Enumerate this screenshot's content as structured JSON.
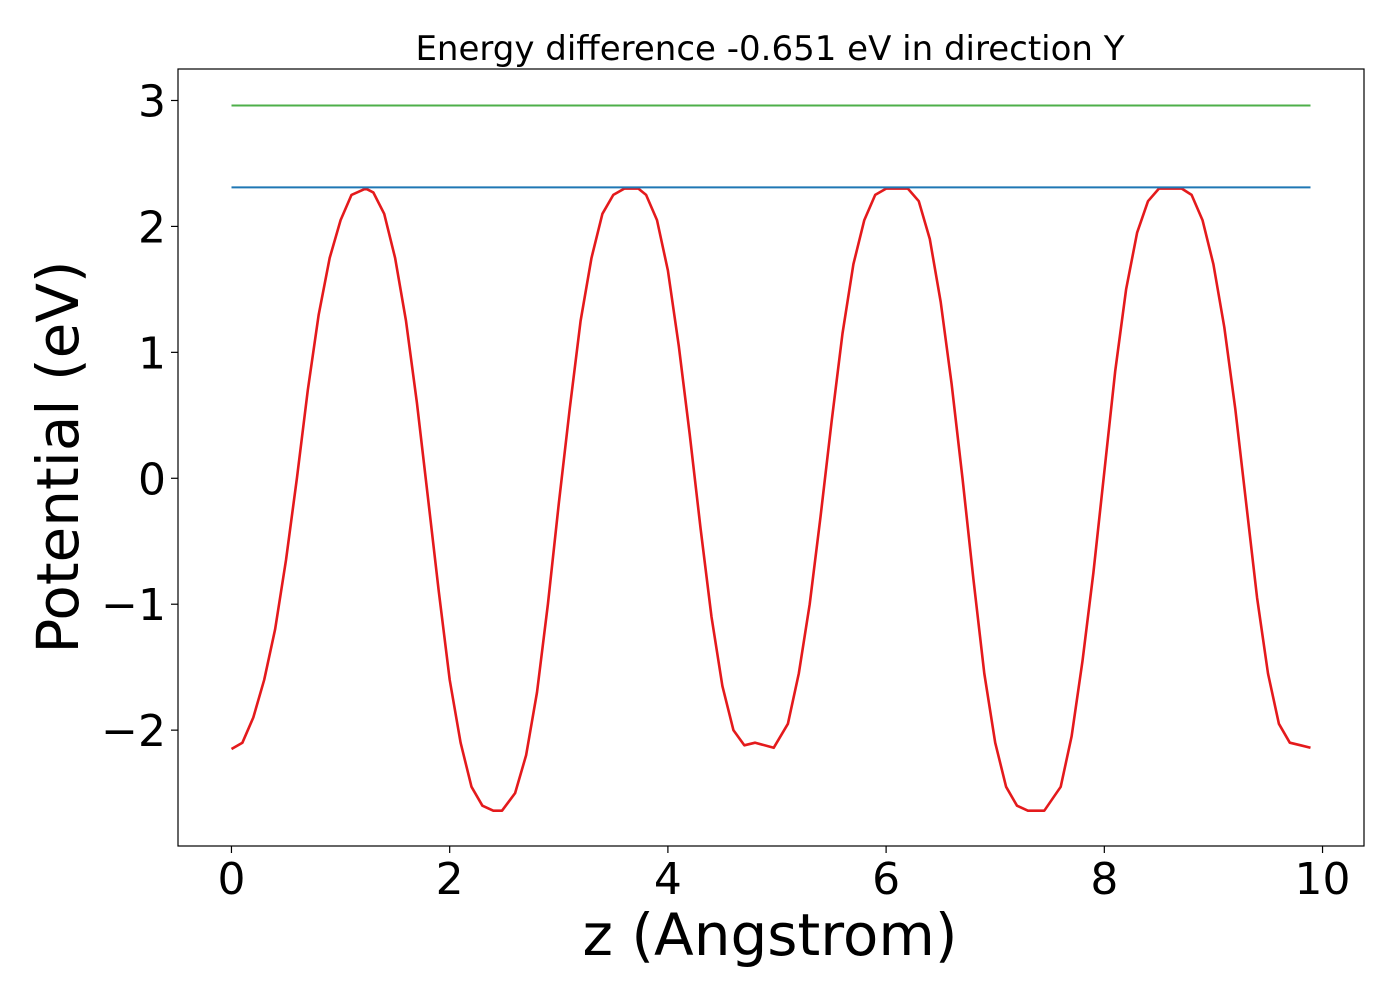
{
  "chart_data": {
    "type": "line",
    "title": "Energy difference -0.651 eV in direction Y",
    "xlabel": "z (Angstrom)",
    "ylabel": "Potential (eV)",
    "xlim": [
      -0.49,
      10.38
    ],
    "ylim": [
      -2.92,
      3.25
    ],
    "xticks": [
      0,
      2,
      4,
      6,
      8,
      10
    ],
    "xtick_labels": [
      "0",
      "2",
      "4",
      "6",
      "8",
      "10"
    ],
    "yticks": [
      -2,
      -1,
      0,
      1,
      2,
      3
    ],
    "ytick_labels": [
      "−2",
      "−1",
      "0",
      "1",
      "2",
      "3"
    ],
    "grid": false,
    "legend": false,
    "series": [
      {
        "color": "#e41a1c",
        "x": [
          0.0,
          0.1,
          0.2,
          0.3,
          0.4,
          0.5,
          0.6,
          0.7,
          0.8,
          0.9,
          1.0,
          1.1,
          1.23,
          1.3,
          1.4,
          1.5,
          1.6,
          1.7,
          1.8,
          1.9,
          2.0,
          2.1,
          2.2,
          2.3,
          2.4,
          2.48,
          2.6,
          2.7,
          2.8,
          2.9,
          3.0,
          3.1,
          3.2,
          3.3,
          3.4,
          3.5,
          3.6,
          3.73,
          3.8,
          3.9,
          4.0,
          4.1,
          4.2,
          4.3,
          4.4,
          4.5,
          4.6,
          4.7,
          4.8,
          4.97,
          5.1,
          5.2,
          5.3,
          5.4,
          5.5,
          5.6,
          5.7,
          5.8,
          5.9,
          6.0,
          6.1,
          6.2,
          6.3,
          6.4,
          6.5,
          6.6,
          6.7,
          6.8,
          6.9,
          7.0,
          7.1,
          7.2,
          7.3,
          7.45,
          7.6,
          7.7,
          7.8,
          7.9,
          8.0,
          8.1,
          8.2,
          8.3,
          8.4,
          8.5,
          8.6,
          8.71,
          8.8,
          8.9,
          9.0,
          9.1,
          9.2,
          9.3,
          9.4,
          9.5,
          9.6,
          9.7,
          9.8,
          9.89
        ],
        "y": [
          -2.15,
          -2.1,
          -1.9,
          -1.6,
          -1.2,
          -0.65,
          0.0,
          0.7,
          1.3,
          1.75,
          2.05,
          2.25,
          2.3,
          2.27,
          2.1,
          1.75,
          1.25,
          0.6,
          -0.15,
          -0.9,
          -1.6,
          -2.1,
          -2.45,
          -2.6,
          -2.64,
          -2.64,
          -2.5,
          -2.2,
          -1.7,
          -1.0,
          -0.2,
          0.55,
          1.25,
          1.75,
          2.1,
          2.25,
          2.3,
          2.3,
          2.25,
          2.05,
          1.65,
          1.05,
          0.35,
          -0.4,
          -1.1,
          -1.65,
          -2.0,
          -2.12,
          -2.1,
          -2.14,
          -1.95,
          -1.55,
          -1.0,
          -0.3,
          0.45,
          1.15,
          1.7,
          2.05,
          2.25,
          2.3,
          2.3,
          2.3,
          2.2,
          1.9,
          1.4,
          0.75,
          0.0,
          -0.8,
          -1.55,
          -2.1,
          -2.45,
          -2.6,
          -2.64,
          -2.64,
          -2.45,
          -2.05,
          -1.45,
          -0.75,
          0.05,
          0.85,
          1.5,
          1.95,
          2.2,
          2.3,
          2.3,
          2.3,
          2.25,
          2.05,
          1.7,
          1.2,
          0.55,
          -0.2,
          -0.95,
          -1.55,
          -1.95,
          -2.1,
          -2.12,
          -2.14
        ]
      },
      {
        "color": "#1f77b4",
        "x": [
          0.0,
          9.89
        ],
        "y": [
          2.31,
          2.31
        ]
      },
      {
        "color": "#4daf4a",
        "x": [
          0.0,
          9.89
        ],
        "y": [
          2.96,
          2.96
        ]
      }
    ]
  }
}
